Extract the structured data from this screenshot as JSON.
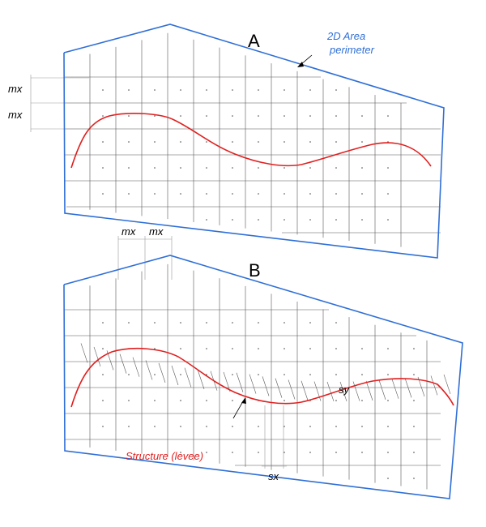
{
  "labels": {
    "panel_a": "A",
    "panel_b": "B",
    "perimeter_line1": "2D Area",
    "perimeter_line2": "perimeter",
    "mx": "mx",
    "structure": "Structure (levee)",
    "sx": "sx",
    "sy": "sy"
  },
  "colors": {
    "perimeter": "#2f6fd6",
    "structure": "#e02020",
    "grid": "#555555"
  }
}
